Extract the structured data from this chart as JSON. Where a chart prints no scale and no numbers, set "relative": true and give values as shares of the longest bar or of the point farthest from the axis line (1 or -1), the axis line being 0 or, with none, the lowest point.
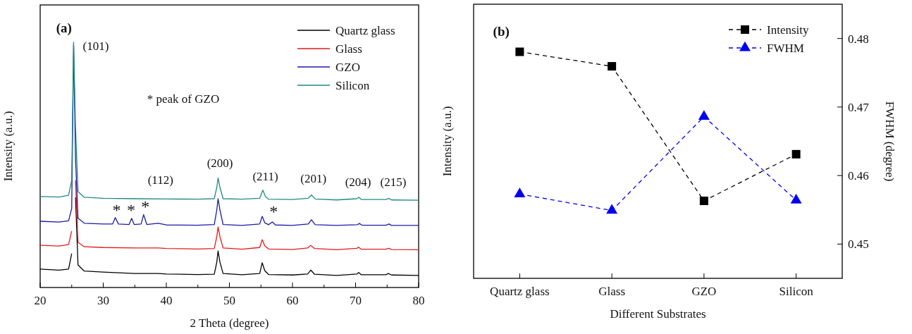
{
  "chart_data": [
    {
      "type": "line",
      "xlabel": "2 Theta (degree)",
      "ylabel": "Intensity (a.u.)",
      "relative": true,
      "legend": "top right",
      "xlim": [
        20,
        80
      ],
      "xticks": [
        20,
        {
          "value": 25,
          "label": null
        },
        30,
        {
          "value": 35,
          "label": null
        },
        40,
        {
          "value": 45,
          "label": null
        },
        50,
        {
          "value": 55,
          "label": null
        },
        60,
        {
          "value": 65,
          "label": null
        },
        70,
        {
          "value": 75,
          "label": null
        },
        80
      ],
      "annotations": [
        "(a)",
        "(101)",
        "(112)",
        "(200)",
        "(211)",
        "(201)",
        "(204)",
        "(215)",
        "*",
        "*",
        "*",
        "*",
        "* peak of GZO"
      ],
      "series": [
        {
          "name": "Quartz glass",
          "color": "#000000",
          "x": [
            20,
            23,
            24.5,
            25,
            25.3,
            25.6,
            26,
            27,
            30,
            35,
            38.7,
            40,
            45,
            47.6,
            48,
            48.2,
            48.5,
            49,
            52,
            54.8,
            55.2,
            55.6,
            56.2,
            60,
            62.4,
            62.9,
            63.5,
            67,
            70.2,
            70.5,
            70.9,
            74.8,
            75.2,
            75.7,
            80
          ],
          "values": [
            0.075,
            0.071,
            0.075,
            0.138,
            null,
            0.368,
            0.092,
            0.067,
            0.063,
            0.057,
            0.057,
            0.055,
            0.053,
            0.054,
            0.103,
            0.149,
            0.103,
            0.057,
            0.052,
            0.057,
            0.101,
            0.069,
            0.053,
            0.051,
            0.055,
            0.071,
            0.054,
            0.049,
            0.055,
            0.061,
            0.052,
            0.052,
            0.057,
            0.051,
            0.049
          ]
        },
        {
          "name": "Glass",
          "color": "#e31a1c",
          "x": [
            20,
            23,
            24.5,
            25,
            25.3,
            25.6,
            26,
            27,
            30,
            35,
            38.7,
            40,
            45,
            47.6,
            48,
            48.2,
            48.5,
            49,
            52,
            54.8,
            55.2,
            55.6,
            56.2,
            60,
            62.4,
            62.9,
            63.5,
            67,
            70.2,
            70.5,
            70.9,
            74.8,
            75.3,
            75.7,
            80
          ],
          "values": [
            0.172,
            0.169,
            0.175,
            0.23,
            null,
            0.437,
            0.184,
            0.166,
            0.163,
            0.161,
            0.161,
            0.159,
            0.157,
            0.159,
            0.207,
            0.247,
            0.207,
            0.161,
            0.156,
            0.163,
            0.195,
            0.17,
            0.157,
            0.155,
            0.161,
            0.172,
            0.159,
            0.154,
            0.16,
            0.164,
            0.156,
            0.156,
            0.16,
            0.155,
            0.154
          ]
        },
        {
          "name": "GZO",
          "color": "#1a1aa6",
          "x": [
            20,
            23,
            24.5,
            25,
            25.3,
            25.6,
            26,
            27,
            30,
            31.5,
            31.9,
            32.4,
            34.1,
            34.5,
            34.9,
            36,
            36.4,
            36.9,
            38.7,
            40,
            45,
            47.6,
            48,
            48.2,
            48.5,
            49,
            52,
            54.8,
            55.2,
            55.6,
            56.2,
            56.8,
            57.3,
            60,
            62.5,
            63,
            63.6,
            67,
            70.3,
            70.6,
            71,
            74.8,
            75.3,
            75.7,
            80
          ],
          "values": [
            0.27,
            0.267,
            0.272,
            0.322,
            0.989,
            0.529,
            0.282,
            0.262,
            0.259,
            0.259,
            0.285,
            0.259,
            0.257,
            0.282,
            0.257,
            0.259,
            0.297,
            0.257,
            0.262,
            0.255,
            0.254,
            0.257,
            0.316,
            0.362,
            0.316,
            0.257,
            0.253,
            0.259,
            0.29,
            0.264,
            0.256,
            0.267,
            0.255,
            0.253,
            0.259,
            0.276,
            0.256,
            0.253,
            0.256,
            0.261,
            0.254,
            0.254,
            0.259,
            0.253,
            0.253
          ]
        },
        {
          "name": "Silicon",
          "color": "#1f8a80",
          "x": [
            20,
            23,
            24.5,
            25,
            25.3,
            25.6,
            26,
            27,
            30,
            35,
            40,
            45,
            47.6,
            48,
            48.2,
            48.5,
            49,
            52,
            54.8,
            55.3,
            55.7,
            56.2,
            60,
            62.5,
            63,
            63.6,
            67,
            70.2,
            70.5,
            70.9,
            74.8,
            75.3,
            75.7,
            80
          ],
          "values": [
            0.371,
            0.369,
            0.376,
            0.437,
            1,
            0.655,
            0.391,
            0.368,
            0.364,
            0.362,
            0.361,
            0.36,
            0.362,
            0.408,
            0.446,
            0.408,
            0.362,
            0.36,
            0.364,
            0.397,
            0.371,
            0.36,
            0.359,
            0.364,
            0.377,
            0.361,
            0.357,
            0.362,
            0.368,
            0.359,
            0.359,
            0.363,
            0.357,
            0.356
          ]
        }
      ]
    },
    {
      "type": "line",
      "xlabel": "Different Substrates",
      "ylabel": "Intensity (a.u.)",
      "y2label": "FWHM (degree)",
      "relative": true,
      "legend": "top right",
      "line_style": "dashed",
      "categories": [
        "Quartz glass",
        "Glass",
        "GZO",
        "Silicon"
      ],
      "y2lim": [
        0.445,
        0.485
      ],
      "y2ticks": [
        0.45,
        0.46,
        0.47,
        0.48
      ],
      "annotations": [
        "(b)"
      ],
      "series": [
        {
          "name": "Intensity",
          "color": "#000000",
          "marker": "square",
          "values": [
            1,
            0.936,
            0.342,
            0.548
          ]
        },
        {
          "name": "FWHM",
          "color": "#0000ee",
          "marker": "triangle",
          "axis": "y2",
          "values": [
            0.4573,
            0.4549,
            0.4686,
            0.4564
          ]
        }
      ]
    }
  ]
}
